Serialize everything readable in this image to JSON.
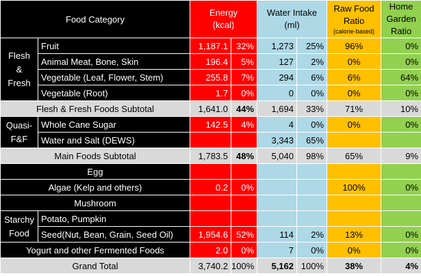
{
  "header": {
    "food_category": "Food Category",
    "energy_line1": "Energy",
    "energy_line2": "(kcal)",
    "water_line1": "Water Intake",
    "water_line2": "(ml)",
    "raw_line1": "Raw Food",
    "raw_line2": "Ratio",
    "raw_line3": "(calorie-based)",
    "home_line1": "Home",
    "home_line2": "Garden",
    "home_line3": "Ratio"
  },
  "groups": {
    "flesh_fresh_1": "Flesh",
    "flesh_fresh_2": "&",
    "flesh_fresh_3": "Fresh",
    "quasi_1": "Quasi-",
    "quasi_2": "F&F",
    "starchy_1": "Starchy",
    "starchy_2": "Food"
  },
  "rows": {
    "fruit": {
      "label": "Fruit",
      "energy": "1,187.1",
      "energy_pct": "32%",
      "water": "1,273",
      "water_pct": "25%",
      "raw": "96%",
      "home": "0%"
    },
    "meat": {
      "label": "Animal Meat, Bone, Skin",
      "energy": "196.4",
      "energy_pct": "5%",
      "water": "127",
      "water_pct": "2%",
      "raw": "0%",
      "home": "0%"
    },
    "veg_leaf": {
      "label": "Vegetable (Leaf, Flower, Stem)",
      "energy": "255.8",
      "energy_pct": "7%",
      "water": "294",
      "water_pct": "6%",
      "raw": "6%",
      "home": "64%"
    },
    "veg_root": {
      "label": "Vegetable (Root)",
      "energy": "1.7",
      "energy_pct": "0%",
      "water": "0",
      "water_pct": "0%",
      "raw": "0%",
      "home": "0%"
    },
    "subtotal_ff": {
      "label": "Flesh & Fresh Foods Subtotal",
      "energy": "1,641.0",
      "energy_pct": "44%",
      "water": "1,694",
      "water_pct": "33%",
      "raw": "71%",
      "home": "10%"
    },
    "sugar": {
      "label": "Whole Cane Sugar",
      "energy": "142.5",
      "energy_pct": "4%",
      "water": "4",
      "water_pct": "0%",
      "raw": "0%",
      "home": "0%"
    },
    "water_salt": {
      "label": "Water and Salt (DEWS)",
      "energy": "",
      "energy_pct": "",
      "water": "3,343",
      "water_pct": "65%",
      "raw": "",
      "home": ""
    },
    "main_subtotal": {
      "label": "Main Foods Subtotal",
      "energy": "1,783.5",
      "energy_pct": "48%",
      "water": "5,040",
      "water_pct": "98%",
      "raw": "65%",
      "home": "9%"
    },
    "egg": {
      "label": "Egg",
      "energy": "",
      "energy_pct": "",
      "water": "",
      "water_pct": "",
      "raw": "",
      "home": ""
    },
    "algae": {
      "label": "Algae (Kelp and others)",
      "energy": "0.2",
      "energy_pct": "0%",
      "water": "",
      "water_pct": "",
      "raw": "100%",
      "home": "0%"
    },
    "mushroom": {
      "label": "Mushroom",
      "energy": "",
      "energy_pct": "",
      "water": "",
      "water_pct": "",
      "raw": "",
      "home": ""
    },
    "potato": {
      "label": "Potato, Pumpkin",
      "energy": "",
      "energy_pct": "",
      "water": "",
      "water_pct": "",
      "raw": "",
      "home": ""
    },
    "seed": {
      "label": "Seed(Nut, Bean, Grain, Seed Oil)",
      "energy": "1,954.6",
      "energy_pct": "52%",
      "water": "114",
      "water_pct": "2%",
      "raw": "13%",
      "home": "0%"
    },
    "yogurt": {
      "label": "Yogurt and other Fermented Foods",
      "energy": "2.0",
      "energy_pct": "0%",
      "water": "7",
      "water_pct": "0%",
      "raw": "0%",
      "home": "0%"
    },
    "grand_total": {
      "label": "Grand Total",
      "energy": "3,740.2",
      "energy_pct": "100%",
      "water": "5,162",
      "water_pct": "100%",
      "raw": "38%",
      "home": "4%"
    }
  }
}
